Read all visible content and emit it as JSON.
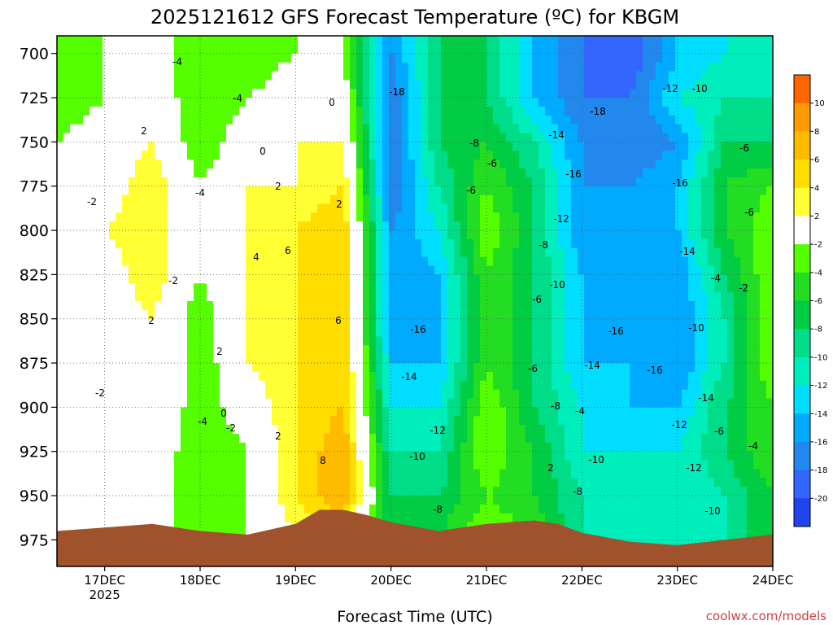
{
  "title": "2025121612 GFS Forecast Temperature (ºC) for KBGM",
  "xlabel": "Forecast Time (UTC)",
  "credit": "coolwx.com/models",
  "chart_data": {
    "type": "heatmap",
    "title": "2025121612 GFS Forecast Temperature (ºC) for KBGM",
    "xlabel": "Forecast Time (UTC)",
    "ylabel": "",
    "x_ticks": [
      {
        "label": "17DEC",
        "sub": "2025",
        "hour": 12
      },
      {
        "label": "18DEC",
        "sub": "",
        "hour": 36
      },
      {
        "label": "19DEC",
        "sub": "",
        "hour": 60
      },
      {
        "label": "20DEC",
        "sub": "",
        "hour": 84
      },
      {
        "label": "21DEC",
        "sub": "",
        "hour": 108
      },
      {
        "label": "22DEC",
        "sub": "",
        "hour": 132
      },
      {
        "label": "23DEC",
        "sub": "",
        "hour": 156
      },
      {
        "label": "24DEC",
        "sub": "",
        "hour": 180
      }
    ],
    "xlim_hours": [
      0,
      180
    ],
    "y_ticks": [
      700,
      725,
      750,
      775,
      800,
      825,
      850,
      875,
      900,
      925,
      950,
      975
    ],
    "ylim_mb": [
      690,
      990
    ],
    "grid": true,
    "colorbar": {
      "levels": [
        10,
        8,
        6,
        4,
        2,
        -2,
        -4,
        -6,
        -8,
        -10,
        -12,
        -14,
        -16,
        -18,
        -20
      ],
      "colors": [
        "#ff6600",
        "#ff9900",
        "#ffbb00",
        "#ffdd00",
        "#ffff33",
        "#ffffff",
        "#55ff00",
        "#22dd22",
        "#00cc44",
        "#00dd88",
        "#00eebb",
        "#00ddff",
        "#00aaff",
        "#2288ee",
        "#3366ff",
        "#2244ee"
      ],
      "placement": "right"
    },
    "cross_section_temperatures": {
      "x_hours": [
        0,
        12,
        24,
        36,
        48,
        60,
        72,
        84,
        96,
        108,
        120,
        132,
        144,
        156,
        168,
        180
      ],
      "levels_mb": [
        975,
        950,
        925,
        900,
        875,
        850,
        825,
        800,
        775,
        750,
        725,
        700
      ],
      "values": [
        [
          -2,
          0,
          0,
          -4,
          -2,
          2,
          4,
          -8,
          -6,
          -2,
          -4,
          -10,
          -12,
          -12,
          -10,
          -6
        ],
        [
          -2,
          0,
          0,
          -4,
          -2,
          4,
          8,
          -8,
          -8,
          -4,
          -6,
          -10,
          -12,
          -12,
          -10,
          -6
        ],
        [
          -2,
          0,
          0,
          -4,
          -2,
          4,
          8,
          -10,
          -10,
          -2,
          -6,
          -12,
          -12,
          -12,
          -8,
          -4
        ],
        [
          -2,
          0,
          2,
          -4,
          0,
          4,
          6,
          -12,
          -12,
          -2,
          -8,
          -12,
          -14,
          -14,
          -8,
          -4
        ],
        [
          -2,
          0,
          2,
          -4,
          2,
          4,
          6,
          -14,
          -14,
          -4,
          -8,
          -14,
          -14,
          -16,
          -10,
          -2
        ],
        [
          -2,
          0,
          2,
          -4,
          2,
          4,
          6,
          -16,
          -14,
          -4,
          -8,
          -14,
          -16,
          -16,
          -10,
          -2
        ],
        [
          -2,
          0,
          4,
          -2,
          2,
          4,
          6,
          -16,
          -14,
          -4,
          -8,
          -14,
          -16,
          -16,
          -8,
          -2
        ],
        [
          -2,
          2,
          4,
          -2,
          2,
          4,
          6,
          -16,
          -12,
          -2,
          -8,
          -16,
          -16,
          -14,
          -6,
          -2
        ],
        [
          -2,
          0,
          4,
          -2,
          2,
          2,
          4,
          -18,
          -10,
          -4,
          -8,
          -16,
          -16,
          -14,
          -6,
          -4
        ],
        [
          -2,
          0,
          2,
          -4,
          0,
          2,
          2,
          -18,
          -8,
          -6,
          -10,
          -16,
          -18,
          -16,
          -8,
          -8
        ],
        [
          -4,
          -2,
          0,
          -4,
          -2,
          0,
          0,
          -18,
          -8,
          -8,
          -14,
          -18,
          -18,
          -12,
          -10,
          -10
        ],
        [
          -4,
          -2,
          0,
          -4,
          -4,
          -2,
          -2,
          -16,
          -8,
          -8,
          -14,
          -18,
          -20,
          -14,
          -12,
          -12
        ]
      ]
    },
    "annotations": [
      "-4",
      "-4",
      "0",
      "-18",
      "2",
      "0",
      "-8",
      "-14",
      "-6",
      "-2",
      "-6",
      "-4",
      "-16",
      "-16",
      "-12",
      "-10",
      "-6",
      "2",
      "2",
      "-8",
      "-12",
      "-18",
      "-14",
      "-6",
      "4",
      "6",
      "-2",
      "-10",
      "-4",
      "-2",
      "2",
      "-16",
      "-6",
      "6",
      "-16",
      "-10",
      "2",
      "-14",
      "-14",
      "-16",
      "-6",
      "-2",
      "-8",
      "0",
      "-4",
      "-2",
      "-4",
      "-12",
      "-12",
      "-14",
      "-6",
      "-4",
      "2",
      "-10",
      "-10",
      "8",
      "-8",
      "-12",
      "2",
      "-8",
      "-10"
    ],
    "surface_terrain": true
  }
}
